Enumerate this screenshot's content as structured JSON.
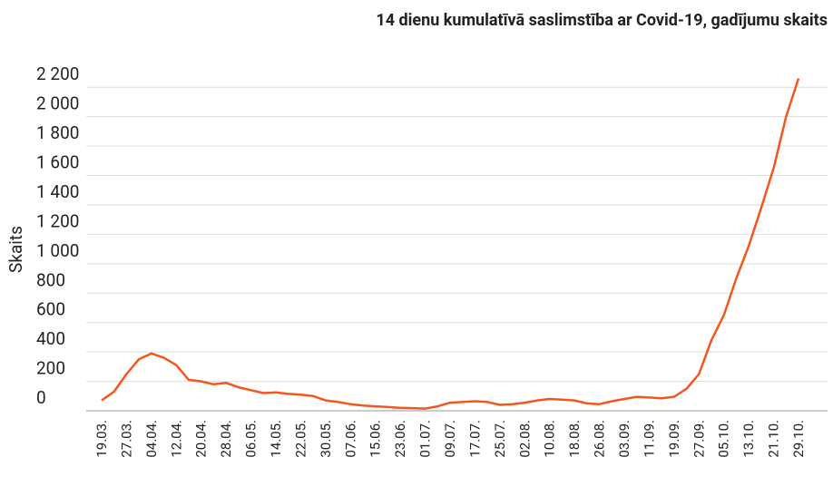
{
  "chart_data": {
    "type": "line",
    "title": "14 dienu kumulatīvā saslimstība ar Covid-19, gadījumu skaits",
    "y_label": "Skaits",
    "categories": [
      "19.03.",
      null,
      "27.03.",
      null,
      "04.04.",
      null,
      "12.04.",
      null,
      "20.04.",
      null,
      "28.04.",
      null,
      "06.05.",
      null,
      "14.05.",
      null,
      "22.05.",
      null,
      "30.05.",
      null,
      "07.06.",
      null,
      "15.06.",
      null,
      "23.06.",
      null,
      "01.07.",
      null,
      "09.07.",
      null,
      "17.07.",
      null,
      "25.07.",
      null,
      "02.08.",
      null,
      "10.08.",
      null,
      "18.08.",
      null,
      "26.08.",
      null,
      "03.09.",
      null,
      "11.09.",
      null,
      "19.09.",
      null,
      "27.09.",
      null,
      "05.10.",
      null,
      "13.10.",
      null,
      "21.10.",
      null,
      "29.10."
    ],
    "series": [
      {
        "name": "Skaits",
        "color": "#f2571d",
        "values": [
          70,
          130,
          250,
          350,
          390,
          360,
          310,
          210,
          200,
          180,
          190,
          160,
          140,
          120,
          125,
          115,
          110,
          100,
          70,
          60,
          45,
          35,
          30,
          25,
          20,
          18,
          15,
          30,
          55,
          60,
          65,
          60,
          40,
          45,
          55,
          70,
          80,
          75,
          70,
          50,
          45,
          65,
          80,
          95,
          90,
          85,
          95,
          150,
          250,
          480,
          650,
          900,
          1120,
          1380,
          1650,
          2000,
          2260
        ]
      }
    ],
    "ylim": [
      0,
      2300
    ],
    "yticks": [
      0,
      200,
      400,
      600,
      800,
      {
        "value": 1000,
        "label": "1 000"
      },
      {
        "value": 1200,
        "label": "1 200"
      },
      {
        "value": 1400,
        "label": "1 400"
      },
      {
        "value": 1600,
        "label": "1 600"
      },
      {
        "value": 1800,
        "label": "1 800"
      },
      {
        "value": 2000,
        "label": "2 000"
      },
      {
        "value": 2200,
        "label": "2 200"
      }
    ],
    "grid": true
  }
}
